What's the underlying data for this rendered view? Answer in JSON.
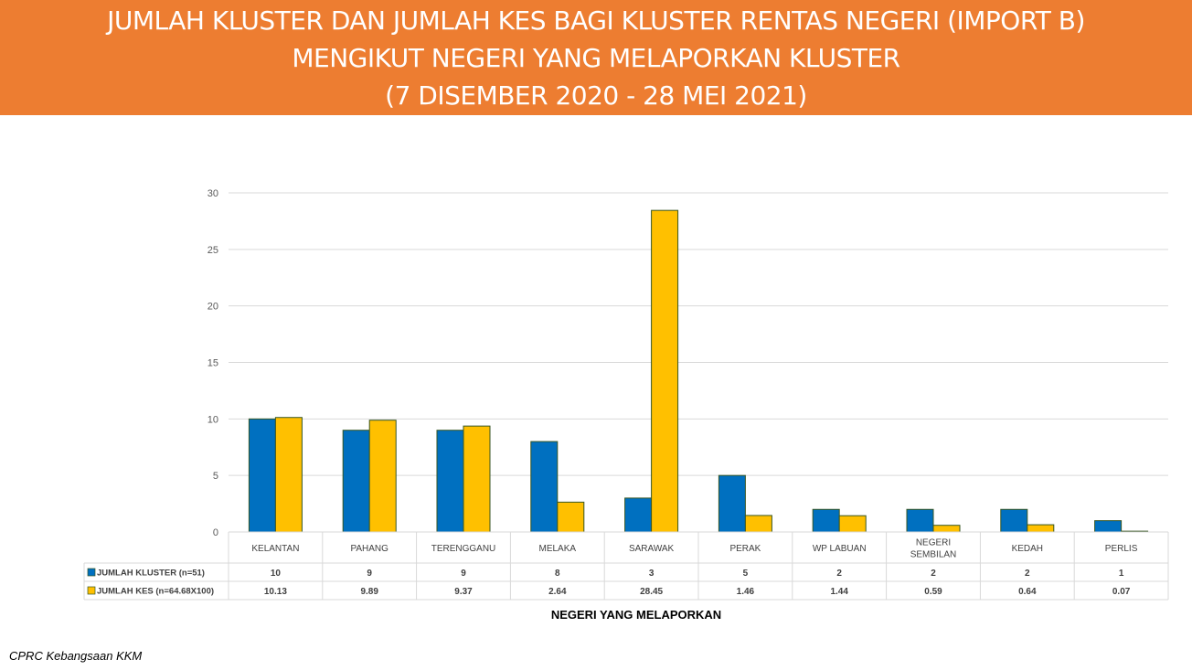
{
  "banner": {
    "line1": "JUMLAH KLUSTER DAN JUMLAH KES BAGI KLUSTER  RENTAS NEGERI (IMPORT B)",
    "line2": "MENGIKUT NEGERI YANG MELAPORKAN KLUSTER",
    "line3": "(7 DISEMBER 2020 - 28 MEI 2021)"
  },
  "footer": "CPRC Kebangsaan KKM",
  "colors": {
    "banner": "#ED7D31",
    "series1": "#0070C0",
    "series2": "#FFC000",
    "bar_border": "#375623",
    "grid": "#D9D9D9"
  },
  "chart_data": {
    "type": "bar",
    "categories": [
      [
        "KELANTAN"
      ],
      [
        "PAHANG"
      ],
      [
        "TERENGGANU"
      ],
      [
        "MELAKA"
      ],
      [
        "SARAWAK"
      ],
      [
        "PERAK"
      ],
      [
        "WP LABUAN"
      ],
      [
        "NEGERI",
        "SEMBILAN"
      ],
      [
        "KEDAH"
      ],
      [
        "PERLIS"
      ]
    ],
    "series": [
      {
        "name": "JUMLAH KLUSTER (n=51)",
        "values": [
          10,
          9,
          9,
          8,
          3,
          5,
          2,
          2,
          2,
          1
        ],
        "labels": [
          "10",
          "9",
          "9",
          "8",
          "3",
          "5",
          "2",
          "2",
          "2",
          "1"
        ]
      },
      {
        "name": "JUMLAH KES (n=64.68X100)",
        "values": [
          10.13,
          9.89,
          9.37,
          2.64,
          28.45,
          1.46,
          1.44,
          0.59,
          0.64,
          0.07
        ],
        "labels": [
          "10.13",
          "9.89",
          "9.37",
          "2.64",
          "28.45",
          "1.46",
          "1.44",
          "0.59",
          "0.64",
          "0.07"
        ]
      }
    ],
    "yticks": [
      "0",
      "5",
      "10",
      "15",
      "20",
      "25",
      "30"
    ],
    "ylim": [
      0,
      30
    ],
    "xlabel": "NEGERI YANG MELAPORKAN",
    "ylabel": "",
    "grid": true,
    "legend": "data-table"
  }
}
